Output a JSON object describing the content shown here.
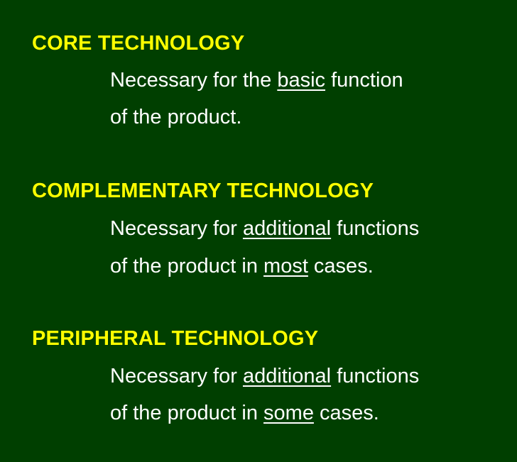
{
  "sections": [
    {
      "heading": "CORE TECHNOLOGY",
      "line1": {
        "pre": "Necessary for the ",
        "u": "basic",
        "post": " function"
      },
      "line2": {
        "pre": "of the product.",
        "u": "",
        "post": ""
      }
    },
    {
      "heading": "COMPLEMENTARY TECHNOLOGY",
      "line1": {
        "pre": "Necessary for ",
        "u": "additional",
        "post": " functions"
      },
      "line2": {
        "pre": "of the product in ",
        "u": "most",
        "post": " cases."
      }
    },
    {
      "heading": "PERIPHERAL TECHNOLOGY",
      "line1": {
        "pre": "Necessary for ",
        "u": "additional",
        "post": " functions"
      },
      "line2": {
        "pre": "of the product in ",
        "u": "some",
        "post": " cases."
      }
    }
  ],
  "colors": {
    "background": "#003f00",
    "heading": "#ffff00",
    "body_text": "#ffffff"
  }
}
